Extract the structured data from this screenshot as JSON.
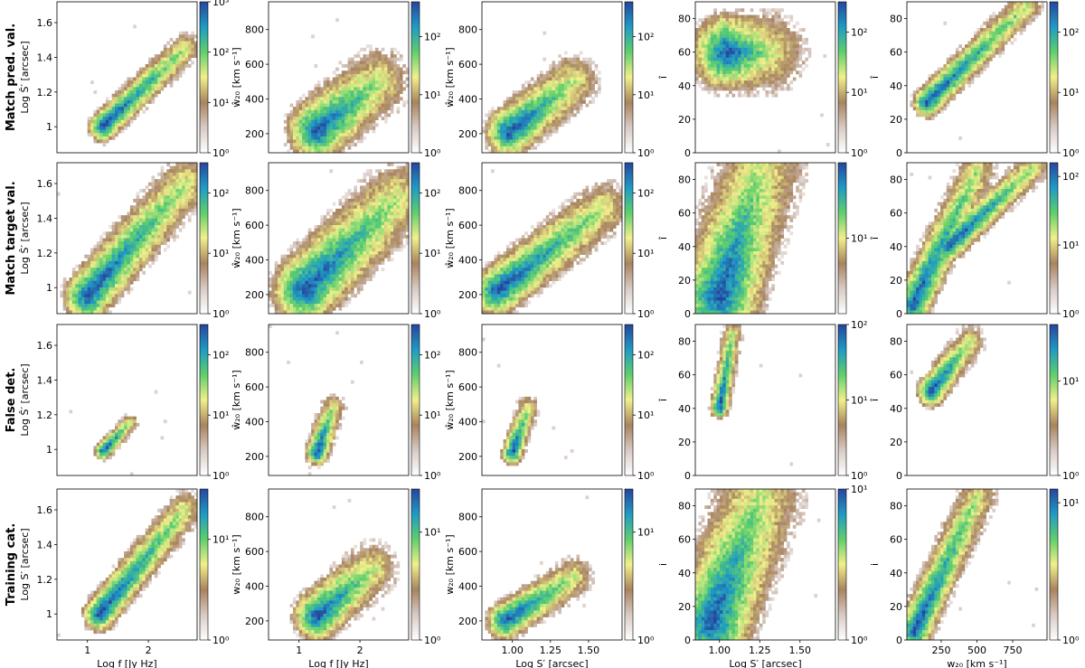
{
  "row_labels": [
    "Match pred. val.",
    "Match target val.",
    "False det.",
    "Training cat."
  ],
  "colormap_stops": [
    "#ffffff",
    "#d8cac4",
    "#a8845f",
    "#f1f08a",
    "#5fcf6c",
    "#1f9bc4",
    "#27459e"
  ],
  "chart_data": [
    {
      "row": 0,
      "col": 0,
      "type": "heatmap",
      "xlabel": "",
      "ylabel": "Log Ŝ′ [arcsec]",
      "xlim": [
        0.5,
        2.8
      ],
      "ylim": [
        0.85,
        1.72
      ],
      "xticks": [],
      "yticks": [
        1.0,
        1.2,
        1.4,
        1.6
      ],
      "cbar_max_exp": 3,
      "cbar_ticks": [
        "10⁰",
        "10¹",
        "10²",
        "10³"
      ],
      "blobs": [
        {
          "x": [
            1.25,
            2.6
          ],
          "y": [
            1.0,
            1.45
          ],
          "w": 0.12,
          "peak": 3
        }
      ]
    },
    {
      "row": 0,
      "col": 1,
      "type": "heatmap",
      "xlabel": "",
      "ylabel": "ŵ₂₀ [km s⁻¹]",
      "xlim": [
        0.5,
        2.8
      ],
      "ylim": [
        90,
        960
      ],
      "xticks": [],
      "yticks": [
        200,
        400,
        600,
        800
      ],
      "cbar_max_exp": 2.6,
      "cbar_ticks": [
        "10⁰",
        "10¹",
        "10²"
      ],
      "blobs": [
        {
          "x": [
            1.3,
            2.3
          ],
          "y": [
            220,
            500
          ],
          "w": 0.25,
          "peak": 2.6
        }
      ]
    },
    {
      "row": 0,
      "col": 2,
      "type": "heatmap",
      "xlabel": "",
      "ylabel": "ŵ₂₀ [km s⁻¹]",
      "xlim": [
        0.8,
        1.72
      ],
      "ylim": [
        90,
        960
      ],
      "xticks": [],
      "yticks": [
        200,
        400,
        600,
        800
      ],
      "cbar_max_exp": 2.6,
      "cbar_ticks": [
        "10⁰",
        "10¹",
        "10²"
      ],
      "blobs": [
        {
          "x": [
            0.98,
            1.4
          ],
          "y": [
            210,
            500
          ],
          "w": 0.2,
          "peak": 2.6
        }
      ]
    },
    {
      "row": 0,
      "col": 3,
      "type": "heatmap",
      "xlabel": "",
      "ylabel": "î",
      "xlim": [
        0.85,
        1.72
      ],
      "ylim": [
        0,
        90
      ],
      "xticks": [],
      "yticks": [
        0,
        20,
        40,
        60,
        80
      ],
      "cbar_max_exp": 2.5,
      "cbar_ticks": [
        "10⁰",
        "10¹",
        "10²"
      ],
      "blobs": [
        {
          "x": [
            1.05,
            1.3
          ],
          "y": [
            60,
            60
          ],
          "w": 0.3,
          "peak": 2.5
        }
      ]
    },
    {
      "row": 0,
      "col": 4,
      "type": "heatmap",
      "xlabel": "",
      "ylabel": "î",
      "xlim": [
        10,
        990
      ],
      "ylim": [
        0,
        90
      ],
      "xticks": [],
      "yticks": [
        0,
        20,
        40,
        60,
        80
      ],
      "cbar_max_exp": 2.5,
      "cbar_ticks": [
        "10⁰",
        "10¹",
        "10²"
      ],
      "blobs": [
        {
          "x": [
            150,
            850
          ],
          "y": [
            30,
            88
          ],
          "w": 0.12,
          "peak": 2.5
        }
      ]
    },
    {
      "row": 1,
      "col": 0,
      "type": "heatmap",
      "xlabel": "",
      "ylabel": "Log Ŝ′ [arcsec]",
      "xlim": [
        0.5,
        2.8
      ],
      "ylim": [
        0.85,
        1.72
      ],
      "xticks": [],
      "yticks": [
        1.0,
        1.2,
        1.4,
        1.6
      ],
      "cbar_max_exp": 2.5,
      "cbar_ticks": [
        "10⁰",
        "10¹",
        "10²"
      ],
      "blobs": [
        {
          "x": [
            1.0,
            2.6
          ],
          "y": [
            0.95,
            1.6
          ],
          "w": 0.2,
          "peak": 2.5
        }
      ]
    },
    {
      "row": 1,
      "col": 1,
      "type": "heatmap",
      "xlabel": "",
      "ylabel": "ŵ₂₀ [km s⁻¹]",
      "xlim": [
        0.5,
        2.8
      ],
      "ylim": [
        90,
        960
      ],
      "xticks": [],
      "yticks": [
        200,
        400,
        600,
        800
      ],
      "cbar_max_exp": 2.5,
      "cbar_ticks": [
        "10⁰",
        "10¹",
        "10²"
      ],
      "blobs": [
        {
          "x": [
            1.1,
            2.6
          ],
          "y": [
            230,
            750
          ],
          "w": 0.28,
          "peak": 2.5
        }
      ]
    },
    {
      "row": 1,
      "col": 2,
      "type": "heatmap",
      "xlabel": "",
      "ylabel": "ŵ₂₀ [km s⁻¹]",
      "xlim": [
        0.8,
        1.72
      ],
      "ylim": [
        90,
        960
      ],
      "xticks": [],
      "yticks": [
        200,
        400,
        600,
        800
      ],
      "cbar_max_exp": 2.5,
      "cbar_ticks": [
        "10⁰",
        "10¹",
        "10²"
      ],
      "blobs": [
        {
          "x": [
            0.9,
            1.6
          ],
          "y": [
            220,
            700
          ],
          "w": 0.2,
          "peak": 2.5
        }
      ]
    },
    {
      "row": 1,
      "col": 3,
      "type": "heatmap",
      "xlabel": "",
      "ylabel": "î",
      "xlim": [
        0.85,
        1.72
      ],
      "ylim": [
        0,
        90
      ],
      "xticks": [],
      "yticks": [
        0,
        20,
        40,
        60,
        80
      ],
      "cbar_max_exp": 2.0,
      "cbar_ticks": [
        "10¹"
      ],
      "blobs": [
        {
          "x": [
            1.0,
            1.25
          ],
          "y": [
            10,
            85
          ],
          "w": 0.35,
          "peak": 2.0
        }
      ]
    },
    {
      "row": 1,
      "col": 4,
      "type": "heatmap",
      "xlabel": "",
      "ylabel": "î",
      "xlim": [
        10,
        990
      ],
      "ylim": [
        0,
        90
      ],
      "xticks": [],
      "yticks": [
        0,
        20,
        40,
        60,
        80
      ],
      "cbar_max_exp": 2.2,
      "cbar_ticks": [
        "10⁰",
        "10¹",
        "10²"
      ],
      "blobs": [
        {
          "x": [
            50,
            500
          ],
          "y": [
            5,
            85
          ],
          "w": 0.15,
          "peak": 2.2
        },
        {
          "x": [
            300,
            900
          ],
          "y": [
            40,
            88
          ],
          "w": 0.12,
          "peak": 1.6
        }
      ]
    },
    {
      "row": 2,
      "col": 0,
      "type": "heatmap",
      "xlabel": "",
      "ylabel": "Log Ŝ′ [arcsec]",
      "xlim": [
        0.5,
        2.8
      ],
      "ylim": [
        0.85,
        1.72
      ],
      "xticks": [],
      "yticks": [
        1.0,
        1.2,
        1.4,
        1.6
      ],
      "cbar_max_exp": 2.5,
      "cbar_ticks": [
        "10⁰",
        "10¹",
        "10²"
      ],
      "blobs": [
        {
          "x": [
            1.25,
            1.7
          ],
          "y": [
            0.99,
            1.15
          ],
          "w": 0.07,
          "peak": 2.5
        }
      ]
    },
    {
      "row": 2,
      "col": 1,
      "type": "heatmap",
      "xlabel": "",
      "ylabel": "ŵ₂₀ [km s⁻¹]",
      "xlim": [
        0.5,
        2.8
      ],
      "ylim": [
        90,
        960
      ],
      "xticks": [],
      "yticks": [
        200,
        400,
        600,
        800
      ],
      "cbar_max_exp": 2.5,
      "cbar_ticks": [
        "10⁰",
        "10¹",
        "10²"
      ],
      "blobs": [
        {
          "x": [
            1.3,
            1.55
          ],
          "y": [
            220,
            480
          ],
          "w": 0.1,
          "peak": 2.5
        }
      ]
    },
    {
      "row": 2,
      "col": 2,
      "type": "heatmap",
      "xlabel": "",
      "ylabel": "ŵ₂₀ [km s⁻¹]",
      "xlim": [
        0.8,
        1.72
      ],
      "ylim": [
        90,
        960
      ],
      "xticks": [],
      "yticks": [
        200,
        400,
        600,
        800
      ],
      "cbar_max_exp": 2.5,
      "cbar_ticks": [
        "10⁰",
        "10¹",
        "10²"
      ],
      "blobs": [
        {
          "x": [
            1.0,
            1.1
          ],
          "y": [
            220,
            480
          ],
          "w": 0.09,
          "peak": 2.5
        }
      ]
    },
    {
      "row": 2,
      "col": 3,
      "type": "heatmap",
      "xlabel": "",
      "ylabel": "î",
      "xlim": [
        0.85,
        1.72
      ],
      "ylim": [
        0,
        90
      ],
      "xticks": [],
      "yticks": [
        0,
        20,
        40,
        60,
        80
      ],
      "cbar_max_exp": 2.0,
      "cbar_ticks": [
        "10⁰",
        "10¹",
        "10²"
      ],
      "blobs": [
        {
          "x": [
            1.0,
            1.08
          ],
          "y": [
            40,
            85
          ],
          "w": 0.08,
          "peak": 2.0
        }
      ]
    },
    {
      "row": 2,
      "col": 4,
      "type": "heatmap",
      "xlabel": "",
      "ylabel": "î",
      "xlim": [
        10,
        990
      ],
      "ylim": [
        0,
        90
      ],
      "xticks": [],
      "yticks": [
        0,
        20,
        40,
        60,
        80
      ],
      "cbar_max_exp": 1.6,
      "cbar_ticks": [
        "10⁰",
        "10¹"
      ],
      "blobs": [
        {
          "x": [
            180,
            450
          ],
          "y": [
            50,
            80
          ],
          "w": 0.12,
          "peak": 1.6
        }
      ]
    },
    {
      "row": 3,
      "col": 0,
      "type": "heatmap",
      "xlabel": "Log f [Jy Hz]",
      "ylabel": "Log S′ [arcsec]",
      "xlim": [
        0.5,
        2.8
      ],
      "ylim": [
        0.85,
        1.72
      ],
      "xticks": [
        1,
        2
      ],
      "yticks": [
        1.0,
        1.2,
        1.4,
        1.6
      ],
      "cbar_max_exp": 1.5,
      "cbar_ticks": [
        "10⁰",
        "10¹"
      ],
      "blobs": [
        {
          "x": [
            1.2,
            2.6
          ],
          "y": [
            1.0,
            1.6
          ],
          "w": 0.14,
          "peak": 1.5
        }
      ]
    },
    {
      "row": 3,
      "col": 1,
      "type": "heatmap",
      "xlabel": "Log f [Jy Hz]",
      "ylabel": "w₂₀ [km s⁻¹]",
      "xlim": [
        0.5,
        2.8
      ],
      "ylim": [
        90,
        960
      ],
      "xticks": [
        1,
        2
      ],
      "yticks": [
        200,
        400,
        600,
        800
      ],
      "cbar_max_exp": 1.4,
      "cbar_ticks": [
        "10⁰",
        "10¹"
      ],
      "blobs": [
        {
          "x": [
            1.3,
            2.2
          ],
          "y": [
            230,
            500
          ],
          "w": 0.2,
          "peak": 1.4
        }
      ]
    },
    {
      "row": 3,
      "col": 2,
      "type": "heatmap",
      "xlabel": "Log S′ [arcsec]",
      "ylabel": "w₂₀ [km s⁻¹]",
      "xlim": [
        0.8,
        1.72
      ],
      "ylim": [
        90,
        960
      ],
      "xticks": [
        1.0,
        1.25,
        1.5
      ],
      "yticks": [
        200,
        400,
        600,
        800
      ],
      "cbar_max_exp": 1.4,
      "cbar_ticks": [
        "10⁰",
        "10¹"
      ],
      "blobs": [
        {
          "x": [
            0.95,
            1.4
          ],
          "y": [
            200,
            450
          ],
          "w": 0.15,
          "peak": 1.4
        }
      ]
    },
    {
      "row": 3,
      "col": 3,
      "type": "heatmap",
      "xlabel": "Log S′ [arcsec]",
      "ylabel": "i",
      "xlim": [
        0.85,
        1.72
      ],
      "ylim": [
        0,
        90
      ],
      "xticks": [
        1.0,
        1.25,
        1.5
      ],
      "yticks": [
        0,
        20,
        40,
        60,
        80
      ],
      "cbar_max_exp": 1.0,
      "cbar_ticks": [
        "10⁰",
        "10¹"
      ],
      "blobs": [
        {
          "x": [
            0.95,
            1.25
          ],
          "y": [
            10,
            85
          ],
          "w": 0.35,
          "peak": 1.0
        }
      ]
    },
    {
      "row": 3,
      "col": 4,
      "type": "heatmap",
      "xlabel": "w₂₀ [km s⁻¹]",
      "ylabel": "i",
      "xlim": [
        10,
        990
      ],
      "ylim": [
        0,
        90
      ],
      "xticks": [
        250,
        500,
        750
      ],
      "yticks": [
        0,
        20,
        40,
        60,
        80
      ],
      "cbar_max_exp": 1.1,
      "cbar_ticks": [
        "10⁰",
        "10¹"
      ],
      "blobs": [
        {
          "x": [
            60,
            500
          ],
          "y": [
            5,
            85
          ],
          "w": 0.15,
          "peak": 1.1
        }
      ]
    }
  ]
}
